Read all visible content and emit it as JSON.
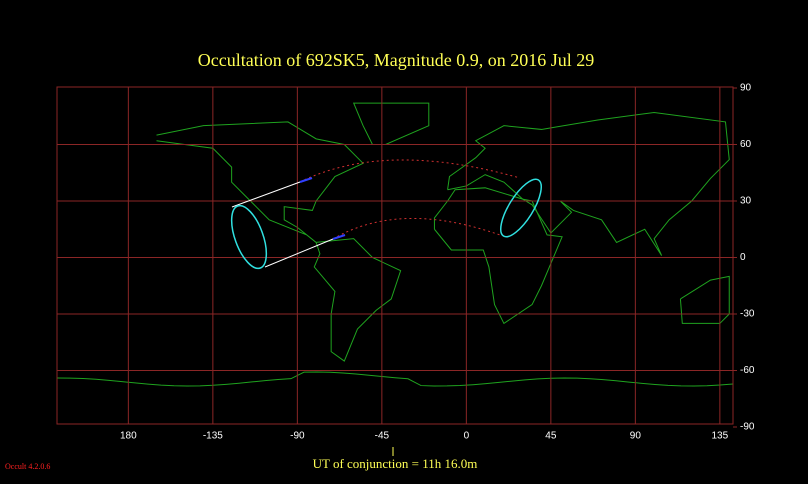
{
  "chart_data": {
    "type": "map",
    "title": "Occultation  of  692SK5,      Magnitude 0.9,    on  2016 Jul 29",
    "xticks": [
      180,
      -135,
      -90,
      -45,
      0,
      45,
      90,
      135
    ],
    "yticks": [
      90,
      60,
      30,
      0,
      -30,
      -60,
      -90
    ],
    "grid": true,
    "annotation": "UT of conjunction = 11h 16.0m",
    "version": "Occult 4.2.0.6"
  }
}
